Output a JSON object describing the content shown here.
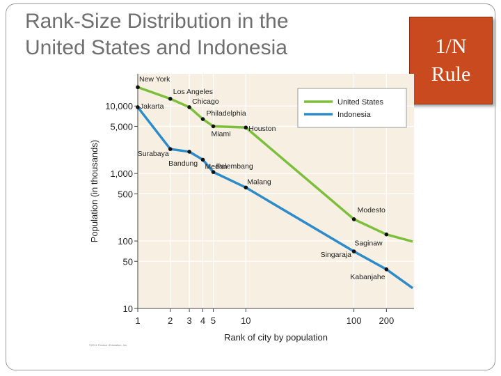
{
  "slide": {
    "title_line1": "Rank-Size Distribution in the",
    "title_line2": "United States and Indonesia",
    "rule_line1": "1/N",
    "rule_line2": "Rule",
    "rule_bg": "#c94a1e"
  },
  "chart_data": {
    "type": "line",
    "scale": "log-log",
    "xlabel": "Rank of city by population",
    "ylabel": "Population (in thousands)",
    "xticks": [
      1,
      2,
      3,
      4,
      5,
      10,
      100,
      200
    ],
    "yticks": [
      10000,
      5000,
      1000,
      500,
      100,
      50,
      10
    ],
    "ytick_labels": [
      "10,000",
      "5,000",
      "1,000",
      "500",
      "100",
      "50",
      "10"
    ],
    "xlim": [
      1,
      360
    ],
    "ylim": [
      10,
      30000
    ],
    "grid": true,
    "legend_position": "top-right",
    "copyright": "©2011 Pearson Education, Inc.",
    "series": [
      {
        "name": "United States",
        "color": "#7bbf3a",
        "points": [
          {
            "x": 1,
            "y": 19000,
            "label": "New York"
          },
          {
            "x": 2,
            "y": 12800,
            "label": "Los Angeles"
          },
          {
            "x": 3,
            "y": 9600,
            "label": "Chicago"
          },
          {
            "x": 4,
            "y": 6400,
            "label": "Philadelphia"
          },
          {
            "x": 5,
            "y": 5000,
            "label": "Miami"
          },
          {
            "x": 10,
            "y": 4800,
            "label": "Houston"
          },
          {
            "x": 100,
            "y": 210,
            "label": "Modesto"
          },
          {
            "x": 200,
            "y": 125,
            "label": "Saginaw"
          },
          {
            "x": 350,
            "y": 98,
            "label": ""
          }
        ]
      },
      {
        "name": "Indonesia",
        "color": "#2e8bc9",
        "points": [
          {
            "x": 1,
            "y": 9600,
            "label": "Jakarta"
          },
          {
            "x": 2,
            "y": 2300,
            "label": "Surabaya"
          },
          {
            "x": 3,
            "y": 2100,
            "label": "Bandung"
          },
          {
            "x": 4,
            "y": 1600,
            "label": "Medan"
          },
          {
            "x": 5,
            "y": 1050,
            "label": "Palembang"
          },
          {
            "x": 10,
            "y": 620,
            "label": "Malang"
          },
          {
            "x": 100,
            "y": 70,
            "label": "Singaraja"
          },
          {
            "x": 200,
            "y": 38,
            "label": "Kabanjahe"
          },
          {
            "x": 350,
            "y": 20,
            "label": ""
          }
        ]
      }
    ]
  }
}
